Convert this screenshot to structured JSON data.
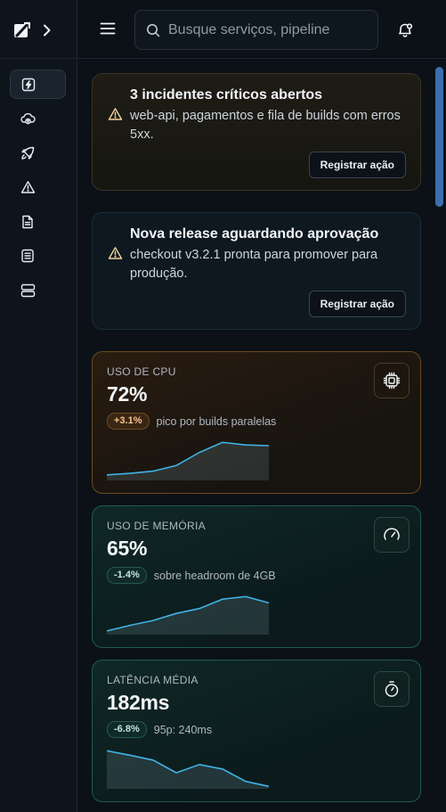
{
  "header": {
    "search_placeholder": "Busque serviços, pipeline"
  },
  "sidebar": {
    "items": [
      {
        "icon": "activity-icon",
        "active": true
      },
      {
        "icon": "cloud-upload-icon"
      },
      {
        "icon": "rocket-icon"
      },
      {
        "icon": "alert-triangle-icon"
      },
      {
        "icon": "file-icon"
      },
      {
        "icon": "list-icon"
      },
      {
        "icon": "server-icon"
      }
    ]
  },
  "alerts": [
    {
      "title": "3 incidentes críticos abertos",
      "body": "web-api, pagamentos e fila de builds com erros 5xx.",
      "button": "Registrar ação"
    },
    {
      "title": "Nova release aguardando aprovação",
      "body": "checkout v3.2.1 pronta para promover para produção.",
      "button": "Registrar ação"
    }
  ],
  "metrics": [
    {
      "label": "USO DE CPU",
      "value": "72%",
      "delta": "+3.1%",
      "desc": "pico por builds paralelas",
      "icon": "cpu-icon",
      "spark": [
        0.1,
        0.14,
        0.2,
        0.35,
        0.7,
        0.97,
        0.9,
        0.88
      ],
      "line_color": "#3fb3e6"
    },
    {
      "label": "USO DE MEMÓRIA",
      "value": "65%",
      "delta": "-1.4%",
      "desc": "sobre headroom de 4GB",
      "icon": "gauge-icon",
      "spark": [
        0.05,
        0.2,
        0.33,
        0.52,
        0.65,
        0.9,
        0.97,
        0.8
      ],
      "line_color": "#3fb3e6"
    },
    {
      "label": "LATÊNCIA MÉDIA",
      "value": "182ms",
      "delta": "-6.8%",
      "desc": "95p: 240ms",
      "icon": "timer-icon",
      "spark": [
        0.97,
        0.85,
        0.72,
        0.38,
        0.6,
        0.48,
        0.15,
        0.02
      ],
      "line_color": "#3fb3e6"
    }
  ]
}
